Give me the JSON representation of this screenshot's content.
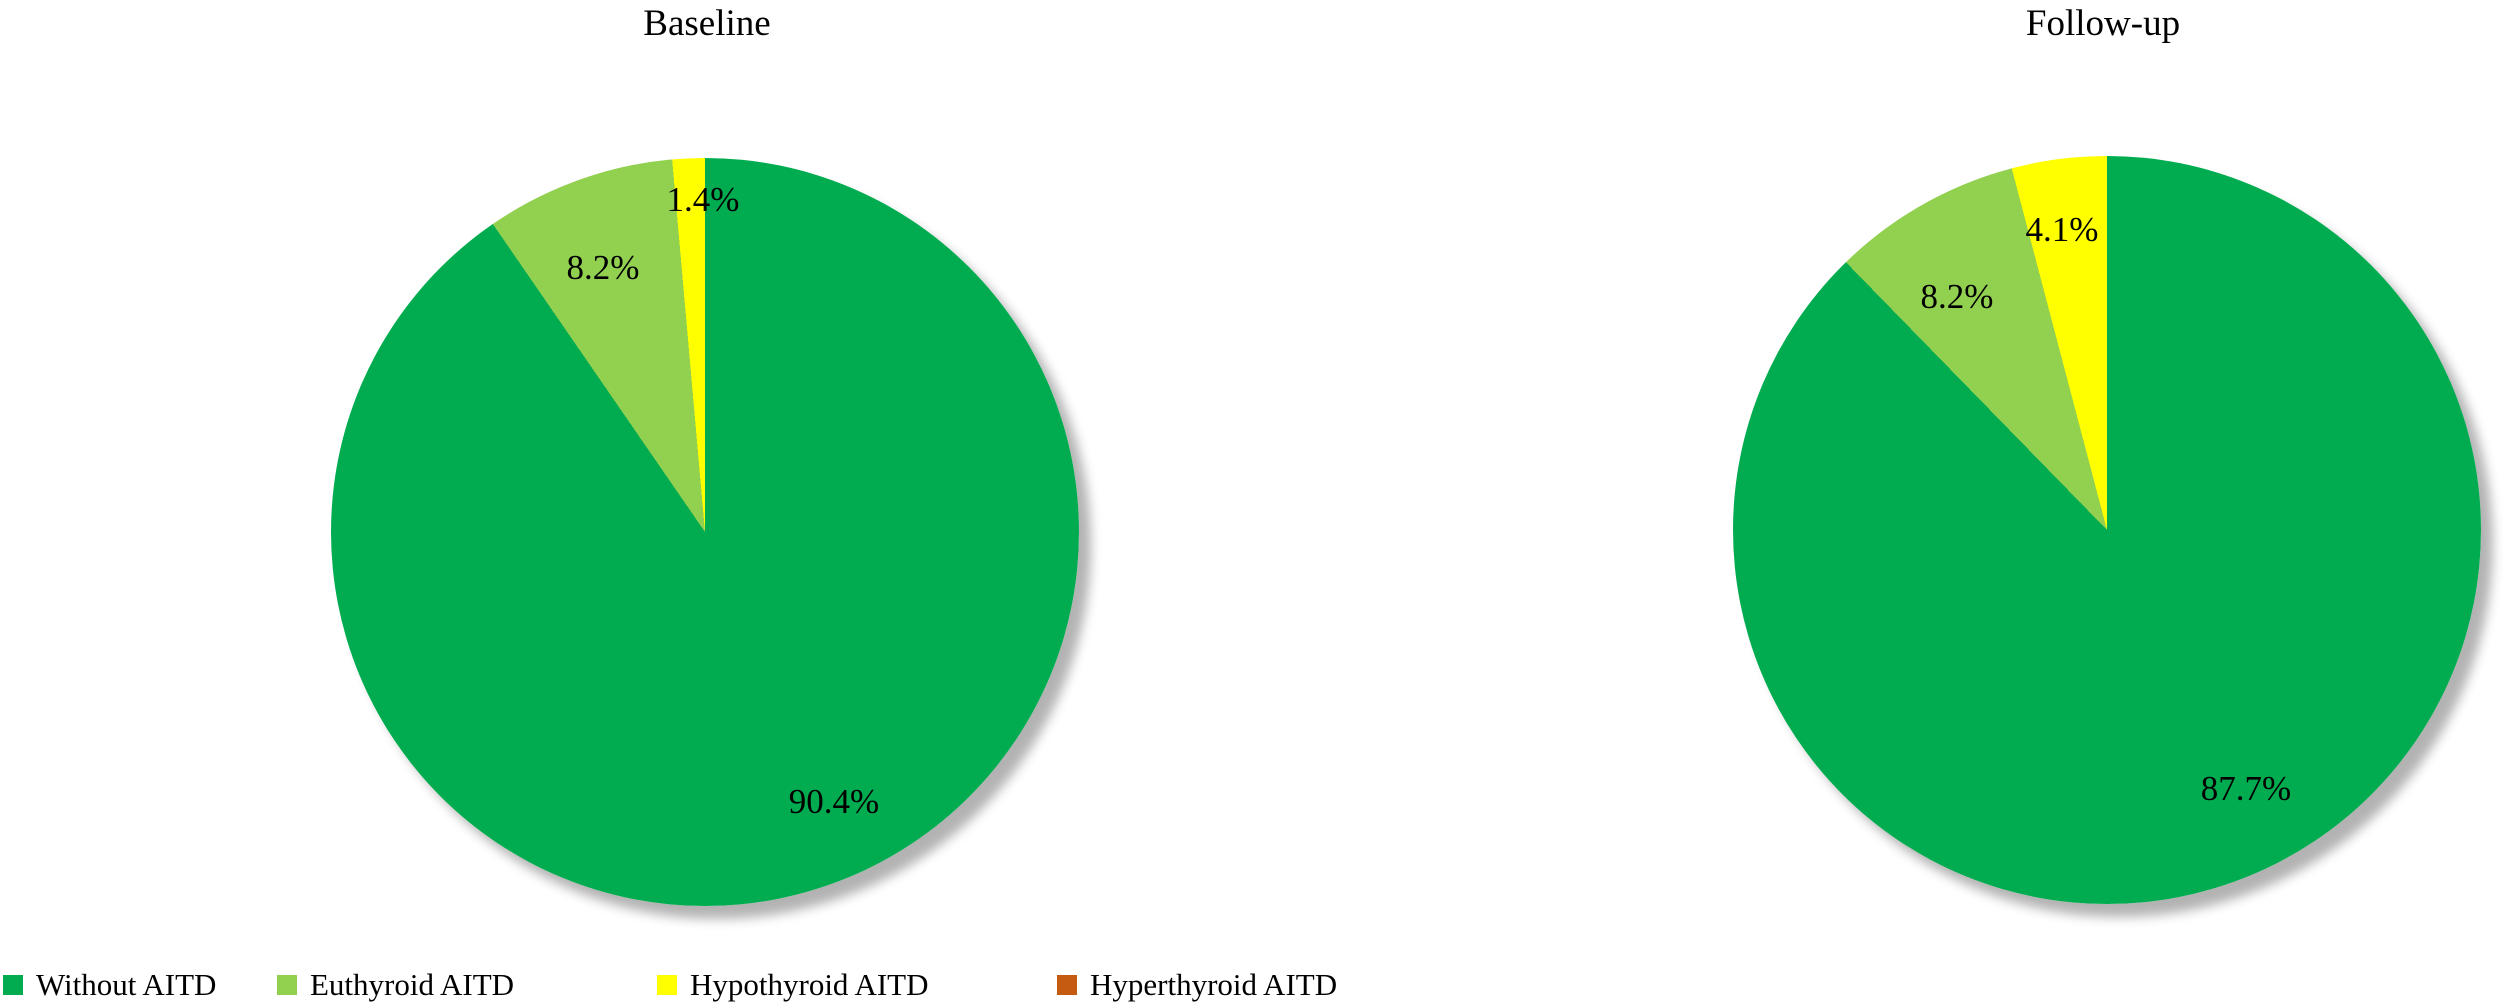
{
  "chart_data": [
    {
      "type": "pie",
      "title": "Baseline",
      "categories": [
        "Without AITD",
        "Euthyroid AITD",
        "Hypothyroid AITD",
        "Hyperthyroid AITD"
      ],
      "values": [
        90.4,
        8.2,
        1.4,
        0.0
      ],
      "data_labels": [
        "90.4%",
        "8.2%",
        "1.4%",
        ""
      ],
      "colors": [
        "#00AC4F",
        "#92D050",
        "#FFFF00",
        "#C55A11"
      ],
      "start_angle_deg": 0,
      "direction": "clockwise",
      "legend_position": "bottom-left"
    },
    {
      "type": "pie",
      "title": "Follow-up",
      "categories": [
        "Without AITD",
        "Euthyroid AITD",
        "Hypothyroid AITD",
        "Hyperthyroid AITD"
      ],
      "values": [
        87.7,
        8.2,
        4.1,
        0.0
      ],
      "data_labels": [
        "87.7%",
        "8.2%",
        "4.1%",
        ""
      ],
      "colors": [
        "#00AC4F",
        "#92D050",
        "#FFFF00",
        "#C55A11"
      ],
      "start_angle_deg": 0,
      "direction": "clockwise",
      "legend_position": "bottom-left"
    }
  ],
  "legend": {
    "items": [
      {
        "label": "Without AITD",
        "color": "#00AC4F",
        "icon": "square-swatch-icon"
      },
      {
        "label": "Euthyroid AITD",
        "color": "#92D050",
        "icon": "square-swatch-icon"
      },
      {
        "label": "Hypothyroid AITD",
        "color": "#FFFF00",
        "icon": "square-swatch-icon"
      },
      {
        "label": "Hyperthyroid AITD",
        "color": "#C55A11",
        "icon": "square-swatch-icon"
      }
    ]
  }
}
